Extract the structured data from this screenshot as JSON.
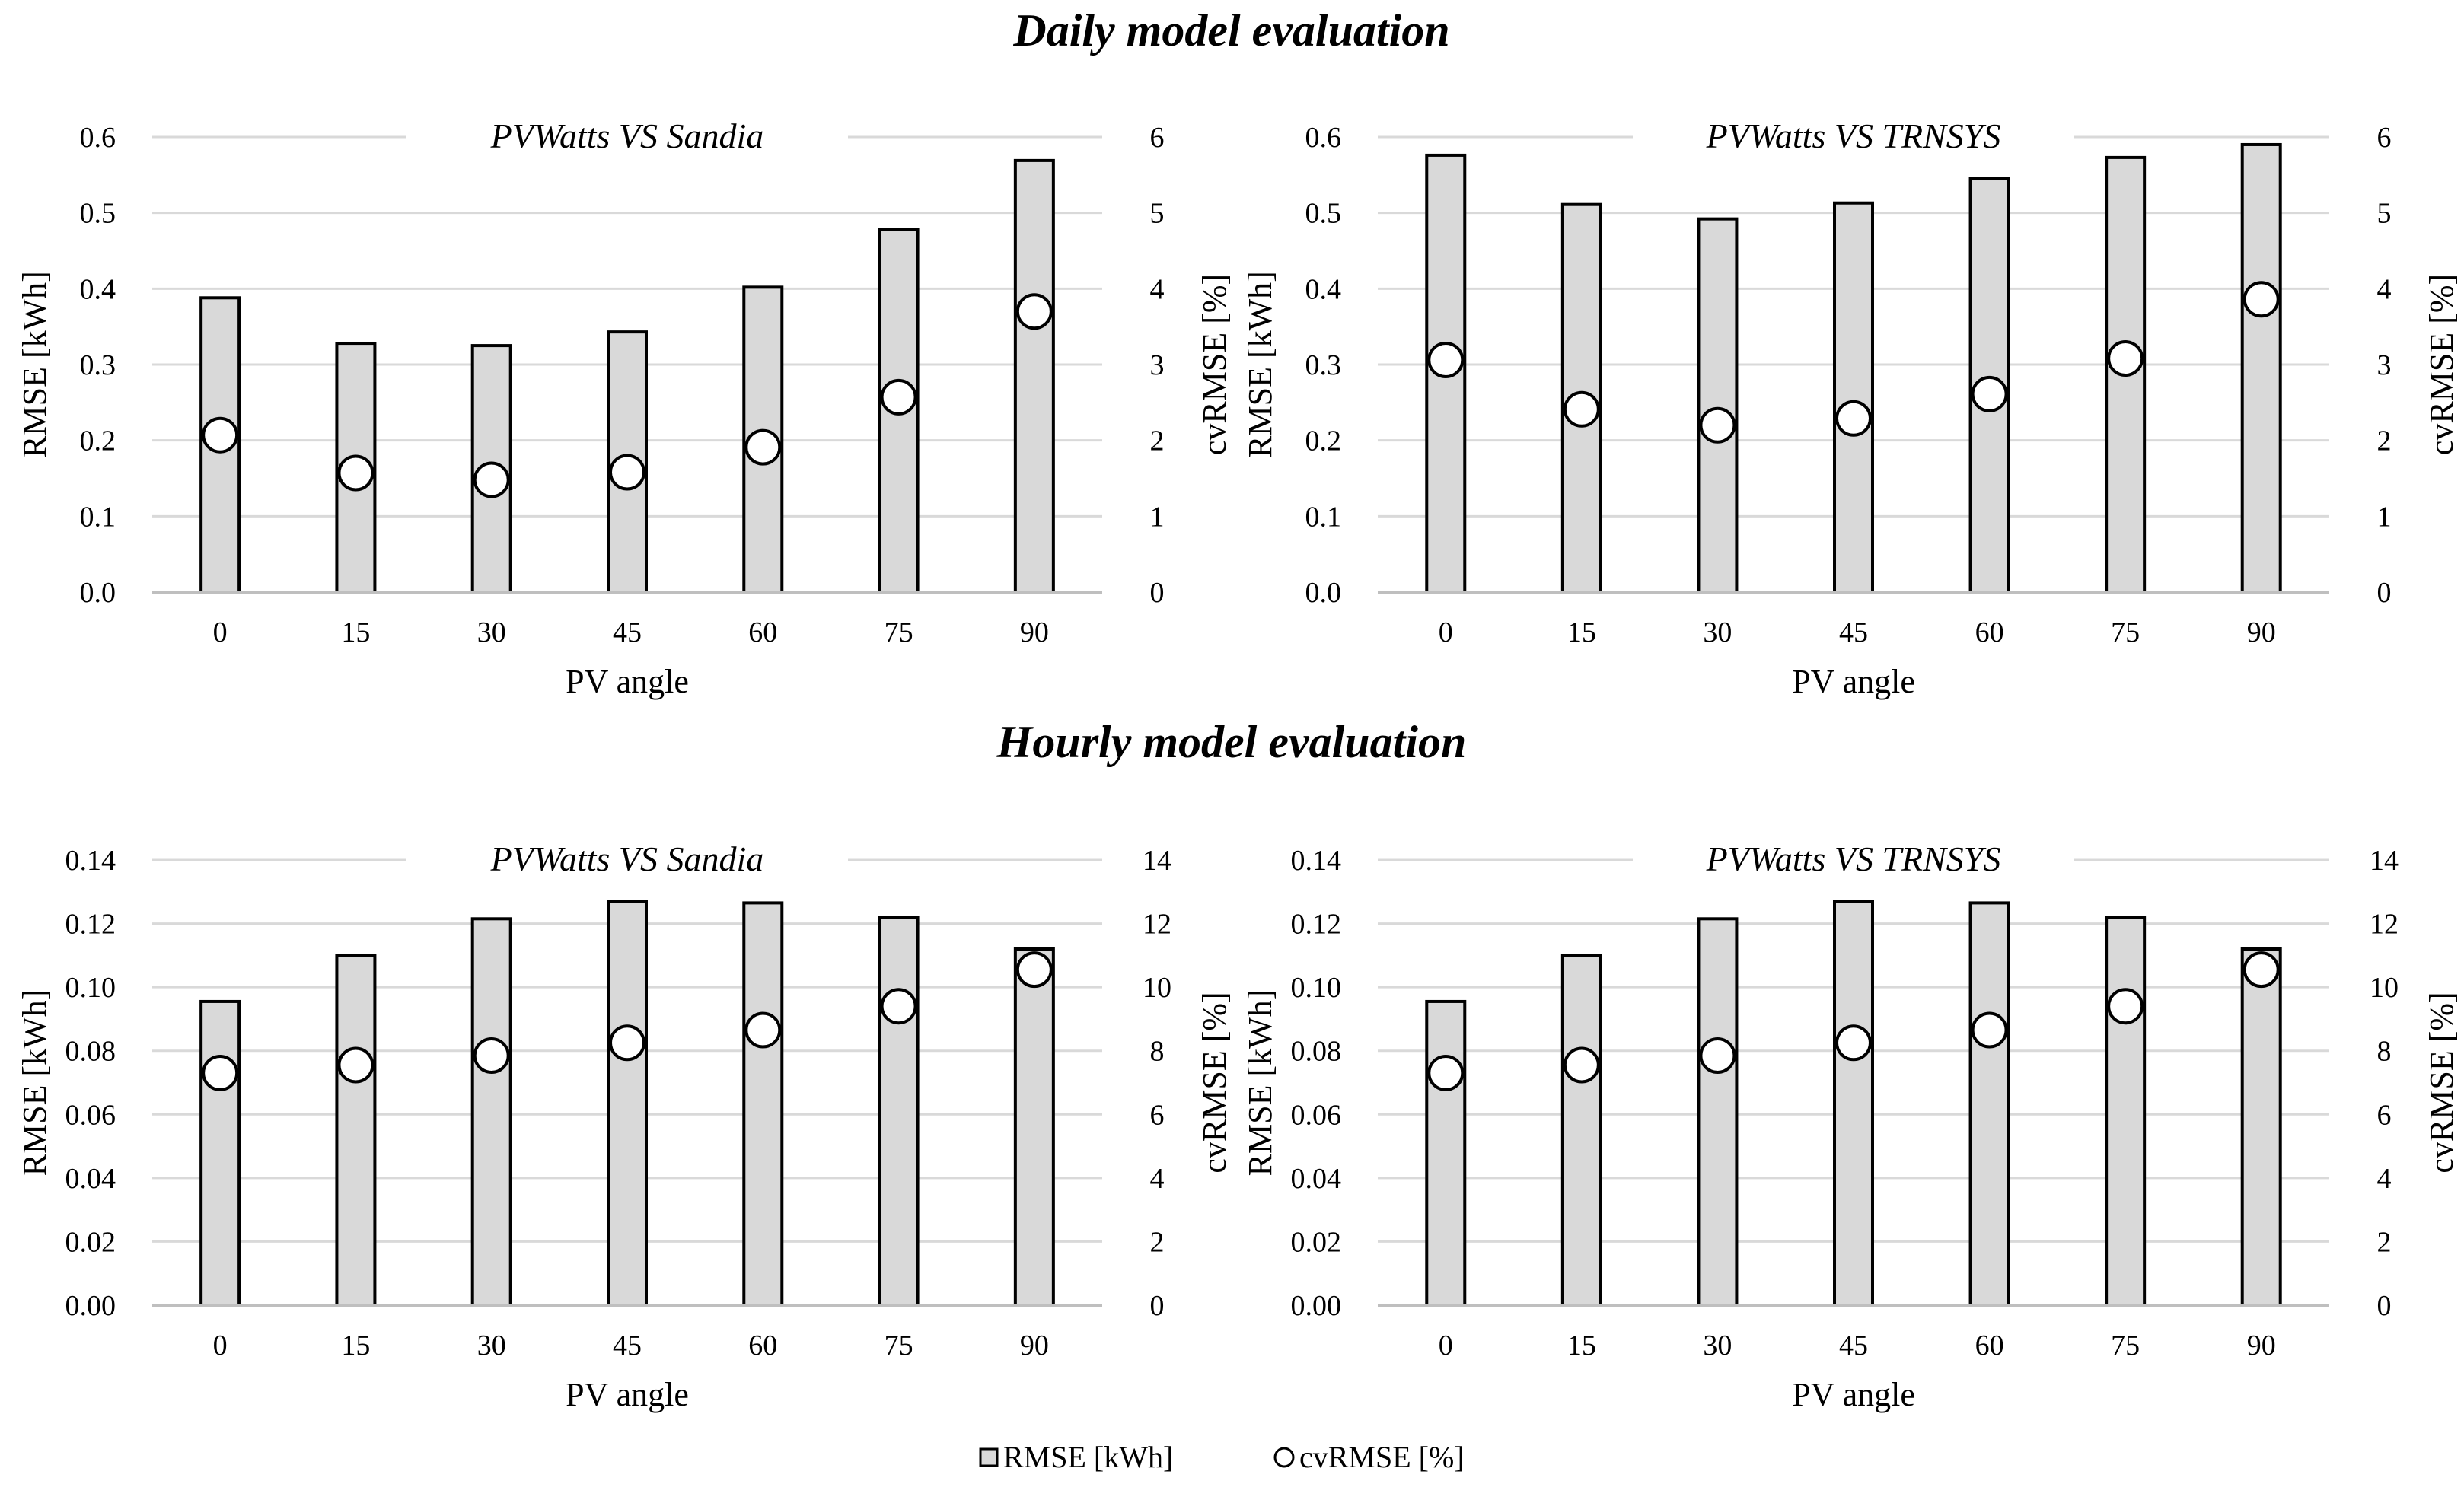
{
  "sections": [
    {
      "title": "Daily model evaluation"
    },
    {
      "title": "Hourly model evaluation"
    }
  ],
  "chart_data": [
    {
      "type": "bar",
      "title": "PVWatts VS Sandia",
      "section": "Daily model evaluation",
      "xlabel": "PV angle",
      "ylabel": "RMSE [kWh]",
      "y2label": "cvRMSE [%]",
      "categories": [
        "0",
        "15",
        "30",
        "45",
        "60",
        "75",
        "90"
      ],
      "ylim": [
        0,
        0.6
      ],
      "y2lim": [
        0,
        6
      ],
      "yticks": [
        "0.0",
        "0.1",
        "0.2",
        "0.3",
        "0.4",
        "0.5",
        "0.6"
      ],
      "y2ticks": [
        "0",
        "1",
        "2",
        "3",
        "4",
        "5",
        "6"
      ],
      "series": [
        {
          "name": "RMSE [kWh]",
          "axis": "left",
          "kind": "bar",
          "values": [
            0.388,
            0.328,
            0.325,
            0.343,
            0.402,
            0.478,
            0.569
          ]
        },
        {
          "name": "cvRMSE [%]",
          "axis": "right",
          "kind": "marker",
          "values": [
            2.07,
            1.57,
            1.48,
            1.58,
            1.91,
            2.57,
            3.7
          ]
        }
      ]
    },
    {
      "type": "bar",
      "title": "PVWatts VS TRNSYS",
      "section": "Daily model evaluation",
      "xlabel": "PV angle",
      "ylabel": "RMSE [kWh]",
      "y2label": "cvRMSE [%]",
      "categories": [
        "0",
        "15",
        "30",
        "45",
        "60",
        "75",
        "90"
      ],
      "ylim": [
        0,
        0.6
      ],
      "y2lim": [
        0,
        6
      ],
      "yticks": [
        "0.0",
        "0.1",
        "0.2",
        "0.3",
        "0.4",
        "0.5",
        "0.6"
      ],
      "y2ticks": [
        "0",
        "1",
        "2",
        "3",
        "4",
        "5",
        "6"
      ],
      "series": [
        {
          "name": "RMSE [kWh]",
          "axis": "left",
          "kind": "bar",
          "values": [
            0.576,
            0.511,
            0.492,
            0.513,
            0.545,
            0.573,
            0.59
          ]
        },
        {
          "name": "cvRMSE [%]",
          "axis": "right",
          "kind": "marker",
          "values": [
            3.06,
            2.41,
            2.2,
            2.29,
            2.61,
            3.08,
            3.86
          ]
        }
      ]
    },
    {
      "type": "bar",
      "title": "PVWatts VS Sandia",
      "section": "Hourly model evaluation",
      "xlabel": "PV angle",
      "ylabel": "RMSE [kWh]",
      "y2label": "cvRMSE [%]",
      "categories": [
        "0",
        "15",
        "30",
        "45",
        "60",
        "75",
        "90"
      ],
      "ylim": [
        0,
        0.14
      ],
      "y2lim": [
        0,
        14
      ],
      "yticks": [
        "0.00",
        "0.02",
        "0.04",
        "0.06",
        "0.08",
        "0.10",
        "0.12",
        "0.14"
      ],
      "y2ticks": [
        "0",
        "2",
        "4",
        "6",
        "8",
        "10",
        "12",
        "14"
      ],
      "series": [
        {
          "name": "RMSE [kWh]",
          "axis": "left",
          "kind": "bar",
          "values": [
            0.0955,
            0.11,
            0.1215,
            0.127,
            0.1265,
            0.122,
            0.112
          ]
        },
        {
          "name": "cvRMSE [%]",
          "axis": "right",
          "kind": "marker",
          "values": [
            7.3,
            7.55,
            7.85,
            8.25,
            8.65,
            9.4,
            10.55
          ]
        }
      ]
    },
    {
      "type": "bar",
      "title": "PVWatts VS TRNSYS",
      "section": "Hourly model evaluation",
      "xlabel": "PV angle",
      "ylabel": "RMSE [kWh]",
      "y2label": "cvRMSE [%]",
      "categories": [
        "0",
        "15",
        "30",
        "45",
        "60",
        "75",
        "90"
      ],
      "ylim": [
        0,
        0.14
      ],
      "y2lim": [
        0,
        14
      ],
      "yticks": [
        "0.00",
        "0.02",
        "0.04",
        "0.06",
        "0.08",
        "0.10",
        "0.12",
        "0.14"
      ],
      "y2ticks": [
        "0",
        "2",
        "4",
        "6",
        "8",
        "10",
        "12",
        "14"
      ],
      "series": [
        {
          "name": "RMSE [kWh]",
          "axis": "left",
          "kind": "bar",
          "values": [
            0.0955,
            0.11,
            0.1215,
            0.127,
            0.1265,
            0.122,
            0.112
          ]
        },
        {
          "name": "cvRMSE [%]",
          "axis": "right",
          "kind": "marker",
          "values": [
            7.3,
            7.55,
            7.85,
            8.25,
            8.65,
            9.4,
            10.55
          ]
        }
      ]
    }
  ],
  "legend": {
    "position": "bottom-center",
    "items": [
      {
        "label": "RMSE [kWh]",
        "marker": "square",
        "color": "#d9d9d9"
      },
      {
        "label": "cvRMSE [%]",
        "marker": "circle",
        "color": "#ffffff"
      }
    ]
  },
  "colors": {
    "bar_fill": "#d9d9d9",
    "bar_stroke": "#000000",
    "marker_fill": "#ffffff",
    "grid": "#d9d9d9",
    "axis": "#bfbfbf"
  }
}
